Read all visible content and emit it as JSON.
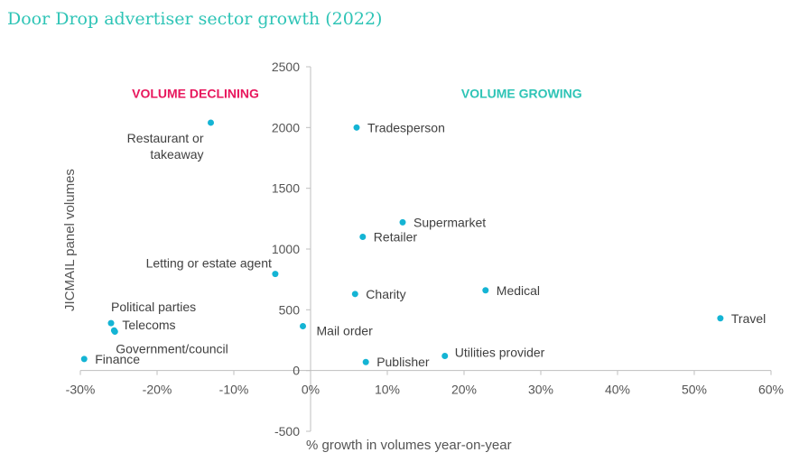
{
  "title": "Door Drop advertiser sector growth (2022)",
  "colors": {
    "title": "#2ec4b6",
    "point": "#14b4d4",
    "declining": "#e8175d",
    "growing": "#2ec4b6",
    "axis": "#bfbfbf"
  },
  "chart_data": {
    "type": "scatter",
    "title": "Door Drop advertiser sector growth (2022)",
    "xlabel": "% growth in volumes year-on-year",
    "ylabel": "JICMAIL panel volumes",
    "xlim": [
      -30,
      60
    ],
    "ylim": [
      -500,
      2500
    ],
    "x_ticks": [
      -30,
      -20,
      -10,
      0,
      10,
      20,
      30,
      40,
      50,
      60
    ],
    "x_tick_labels": [
      "-30%",
      "-20%",
      "-10%",
      "0%",
      "10%",
      "20%",
      "30%",
      "40%",
      "50%",
      "60%"
    ],
    "y_ticks": [
      -500,
      0,
      500,
      1000,
      1500,
      2000,
      2500
    ],
    "y_tick_labels": [
      "-500",
      "0",
      "500",
      "1000",
      "1500",
      "2000",
      "2500"
    ],
    "grid": false,
    "annotations": [
      {
        "text": "VOLUME DECLINING",
        "x": -15,
        "y": 2280,
        "color": "#e8175d"
      },
      {
        "text": "VOLUME GROWING",
        "x": 27.5,
        "y": 2280,
        "color": "#2ec4b6"
      }
    ],
    "points": [
      {
        "label": "Restaurant or takeaway",
        "lines": [
          "Restaurant or",
          "takeaway"
        ],
        "x": -13,
        "y": 2040,
        "dx": -8,
        "dy": 22,
        "anchor": "end"
      },
      {
        "label": "Tradesperson",
        "lines": [
          "Tradesperson"
        ],
        "x": 6,
        "y": 2000,
        "dx": 12,
        "dy": 5,
        "anchor": "start"
      },
      {
        "label": "Supermarket",
        "lines": [
          "Supermarket"
        ],
        "x": 12,
        "y": 1220,
        "dx": 12,
        "dy": 5,
        "anchor": "start"
      },
      {
        "label": "Retailer",
        "lines": [
          "Retailer"
        ],
        "x": 6.8,
        "y": 1100,
        "dx": 12,
        "dy": 5,
        "anchor": "start"
      },
      {
        "label": "Letting or estate agent",
        "lines": [
          "Letting or estate agent"
        ],
        "x": -4.6,
        "y": 795,
        "dx": -4,
        "dy": -7,
        "anchor": "end"
      },
      {
        "label": "Medical",
        "lines": [
          "Medical"
        ],
        "x": 22.8,
        "y": 660,
        "dx": 12,
        "dy": 5,
        "anchor": "start"
      },
      {
        "label": "Charity",
        "lines": [
          "Charity"
        ],
        "x": 5.8,
        "y": 630,
        "dx": 12,
        "dy": 5,
        "anchor": "start"
      },
      {
        "label": "Travel",
        "lines": [
          "Travel"
        ],
        "x": 53.4,
        "y": 430,
        "dx": 12,
        "dy": 5,
        "anchor": "start"
      },
      {
        "label": "Political parties",
        "lines": [
          "Political parties"
        ],
        "x": -26,
        "y": 390,
        "dx": 0,
        "dy": -13,
        "anchor": "start"
      },
      {
        "label": "Telecoms",
        "lines": [
          "Telecoms"
        ],
        "x": -25.6,
        "y": 330,
        "dx": 9,
        "dy": -1,
        "anchor": "start"
      },
      {
        "label": "Mail order",
        "lines": [
          "Mail order"
        ],
        "x": -1,
        "y": 365,
        "dx": 15,
        "dy": 10,
        "anchor": "start"
      },
      {
        "label": "Government/council",
        "lines": [
          "Government/council"
        ],
        "x": -25.5,
        "y": 320,
        "dx": 1,
        "dy": 24,
        "anchor": "start"
      },
      {
        "label": "Utilities provider",
        "lines": [
          "Utilities provider"
        ],
        "x": 17.5,
        "y": 120,
        "dx": 11,
        "dy": 1,
        "anchor": "start"
      },
      {
        "label": "Finance",
        "lines": [
          "Finance"
        ],
        "x": -29.5,
        "y": 95,
        "dx": 12,
        "dy": 5,
        "anchor": "start"
      },
      {
        "label": "Publisher",
        "lines": [
          "Publisher"
        ],
        "x": 7.2,
        "y": 70,
        "dx": 12,
        "dy": 5,
        "anchor": "start"
      }
    ]
  }
}
